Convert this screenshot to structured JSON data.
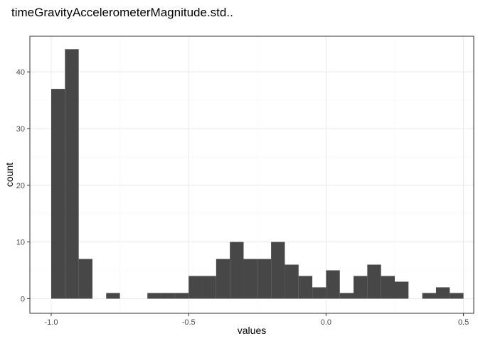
{
  "chart_data": {
    "type": "bar",
    "subtype": "histogram",
    "title": "timeGravityAccelerometerMagnitude.std..",
    "xlabel": "values",
    "ylabel": "count",
    "xlim": [
      -1.0,
      0.5
    ],
    "ylim": [
      0,
      44
    ],
    "x_ticks": [
      -1.0,
      -0.5,
      0.0,
      0.5
    ],
    "x_tick_labels": [
      "-1.0",
      "-0.5",
      "0.0",
      "0.5"
    ],
    "y_ticks": [
      0,
      10,
      20,
      30,
      40
    ],
    "y_tick_labels": [
      "0",
      "10",
      "20",
      "30",
      "40"
    ],
    "bin_width": 0.05,
    "bins": [
      {
        "x0": -1.0,
        "x1": -0.95,
        "count": 37
      },
      {
        "x0": -0.95,
        "x1": -0.9,
        "count": 44
      },
      {
        "x0": -0.9,
        "x1": -0.85,
        "count": 7
      },
      {
        "x0": -0.85,
        "x1": -0.8,
        "count": 0
      },
      {
        "x0": -0.8,
        "x1": -0.75,
        "count": 1
      },
      {
        "x0": -0.75,
        "x1": -0.7,
        "count": 0
      },
      {
        "x0": -0.7,
        "x1": -0.65,
        "count": 0
      },
      {
        "x0": -0.65,
        "x1": -0.6,
        "count": 1
      },
      {
        "x0": -0.6,
        "x1": -0.55,
        "count": 1
      },
      {
        "x0": -0.55,
        "x1": -0.5,
        "count": 1
      },
      {
        "x0": -0.5,
        "x1": -0.45,
        "count": 4
      },
      {
        "x0": -0.45,
        "x1": -0.4,
        "count": 4
      },
      {
        "x0": -0.4,
        "x1": -0.35,
        "count": 7
      },
      {
        "x0": -0.35,
        "x1": -0.3,
        "count": 10
      },
      {
        "x0": -0.3,
        "x1": -0.25,
        "count": 7
      },
      {
        "x0": -0.25,
        "x1": -0.2,
        "count": 7
      },
      {
        "x0": -0.2,
        "x1": -0.15,
        "count": 10
      },
      {
        "x0": -0.15,
        "x1": -0.1,
        "count": 6
      },
      {
        "x0": -0.1,
        "x1": -0.05,
        "count": 4
      },
      {
        "x0": -0.05,
        "x1": 0.0,
        "count": 2
      },
      {
        "x0": 0.0,
        "x1": 0.05,
        "count": 5
      },
      {
        "x0": 0.05,
        "x1": 0.1,
        "count": 1
      },
      {
        "x0": 0.1,
        "x1": 0.15,
        "count": 4
      },
      {
        "x0": 0.15,
        "x1": 0.2,
        "count": 6
      },
      {
        "x0": 0.2,
        "x1": 0.25,
        "count": 4
      },
      {
        "x0": 0.25,
        "x1": 0.3,
        "count": 3
      },
      {
        "x0": 0.3,
        "x1": 0.35,
        "count": 0
      },
      {
        "x0": 0.35,
        "x1": 0.4,
        "count": 1
      },
      {
        "x0": 0.4,
        "x1": 0.45,
        "count": 2
      },
      {
        "x0": 0.45,
        "x1": 0.5,
        "count": 1
      }
    ],
    "grid": true,
    "legend": "none",
    "colors": {
      "bar_fill": "#474747",
      "panel_border": "#333333",
      "grid_major": "#ebebeb",
      "grid_minor": "#f5f5f5",
      "tick_label": "#4d4d4d",
      "tick_mark": "#333333"
    }
  }
}
